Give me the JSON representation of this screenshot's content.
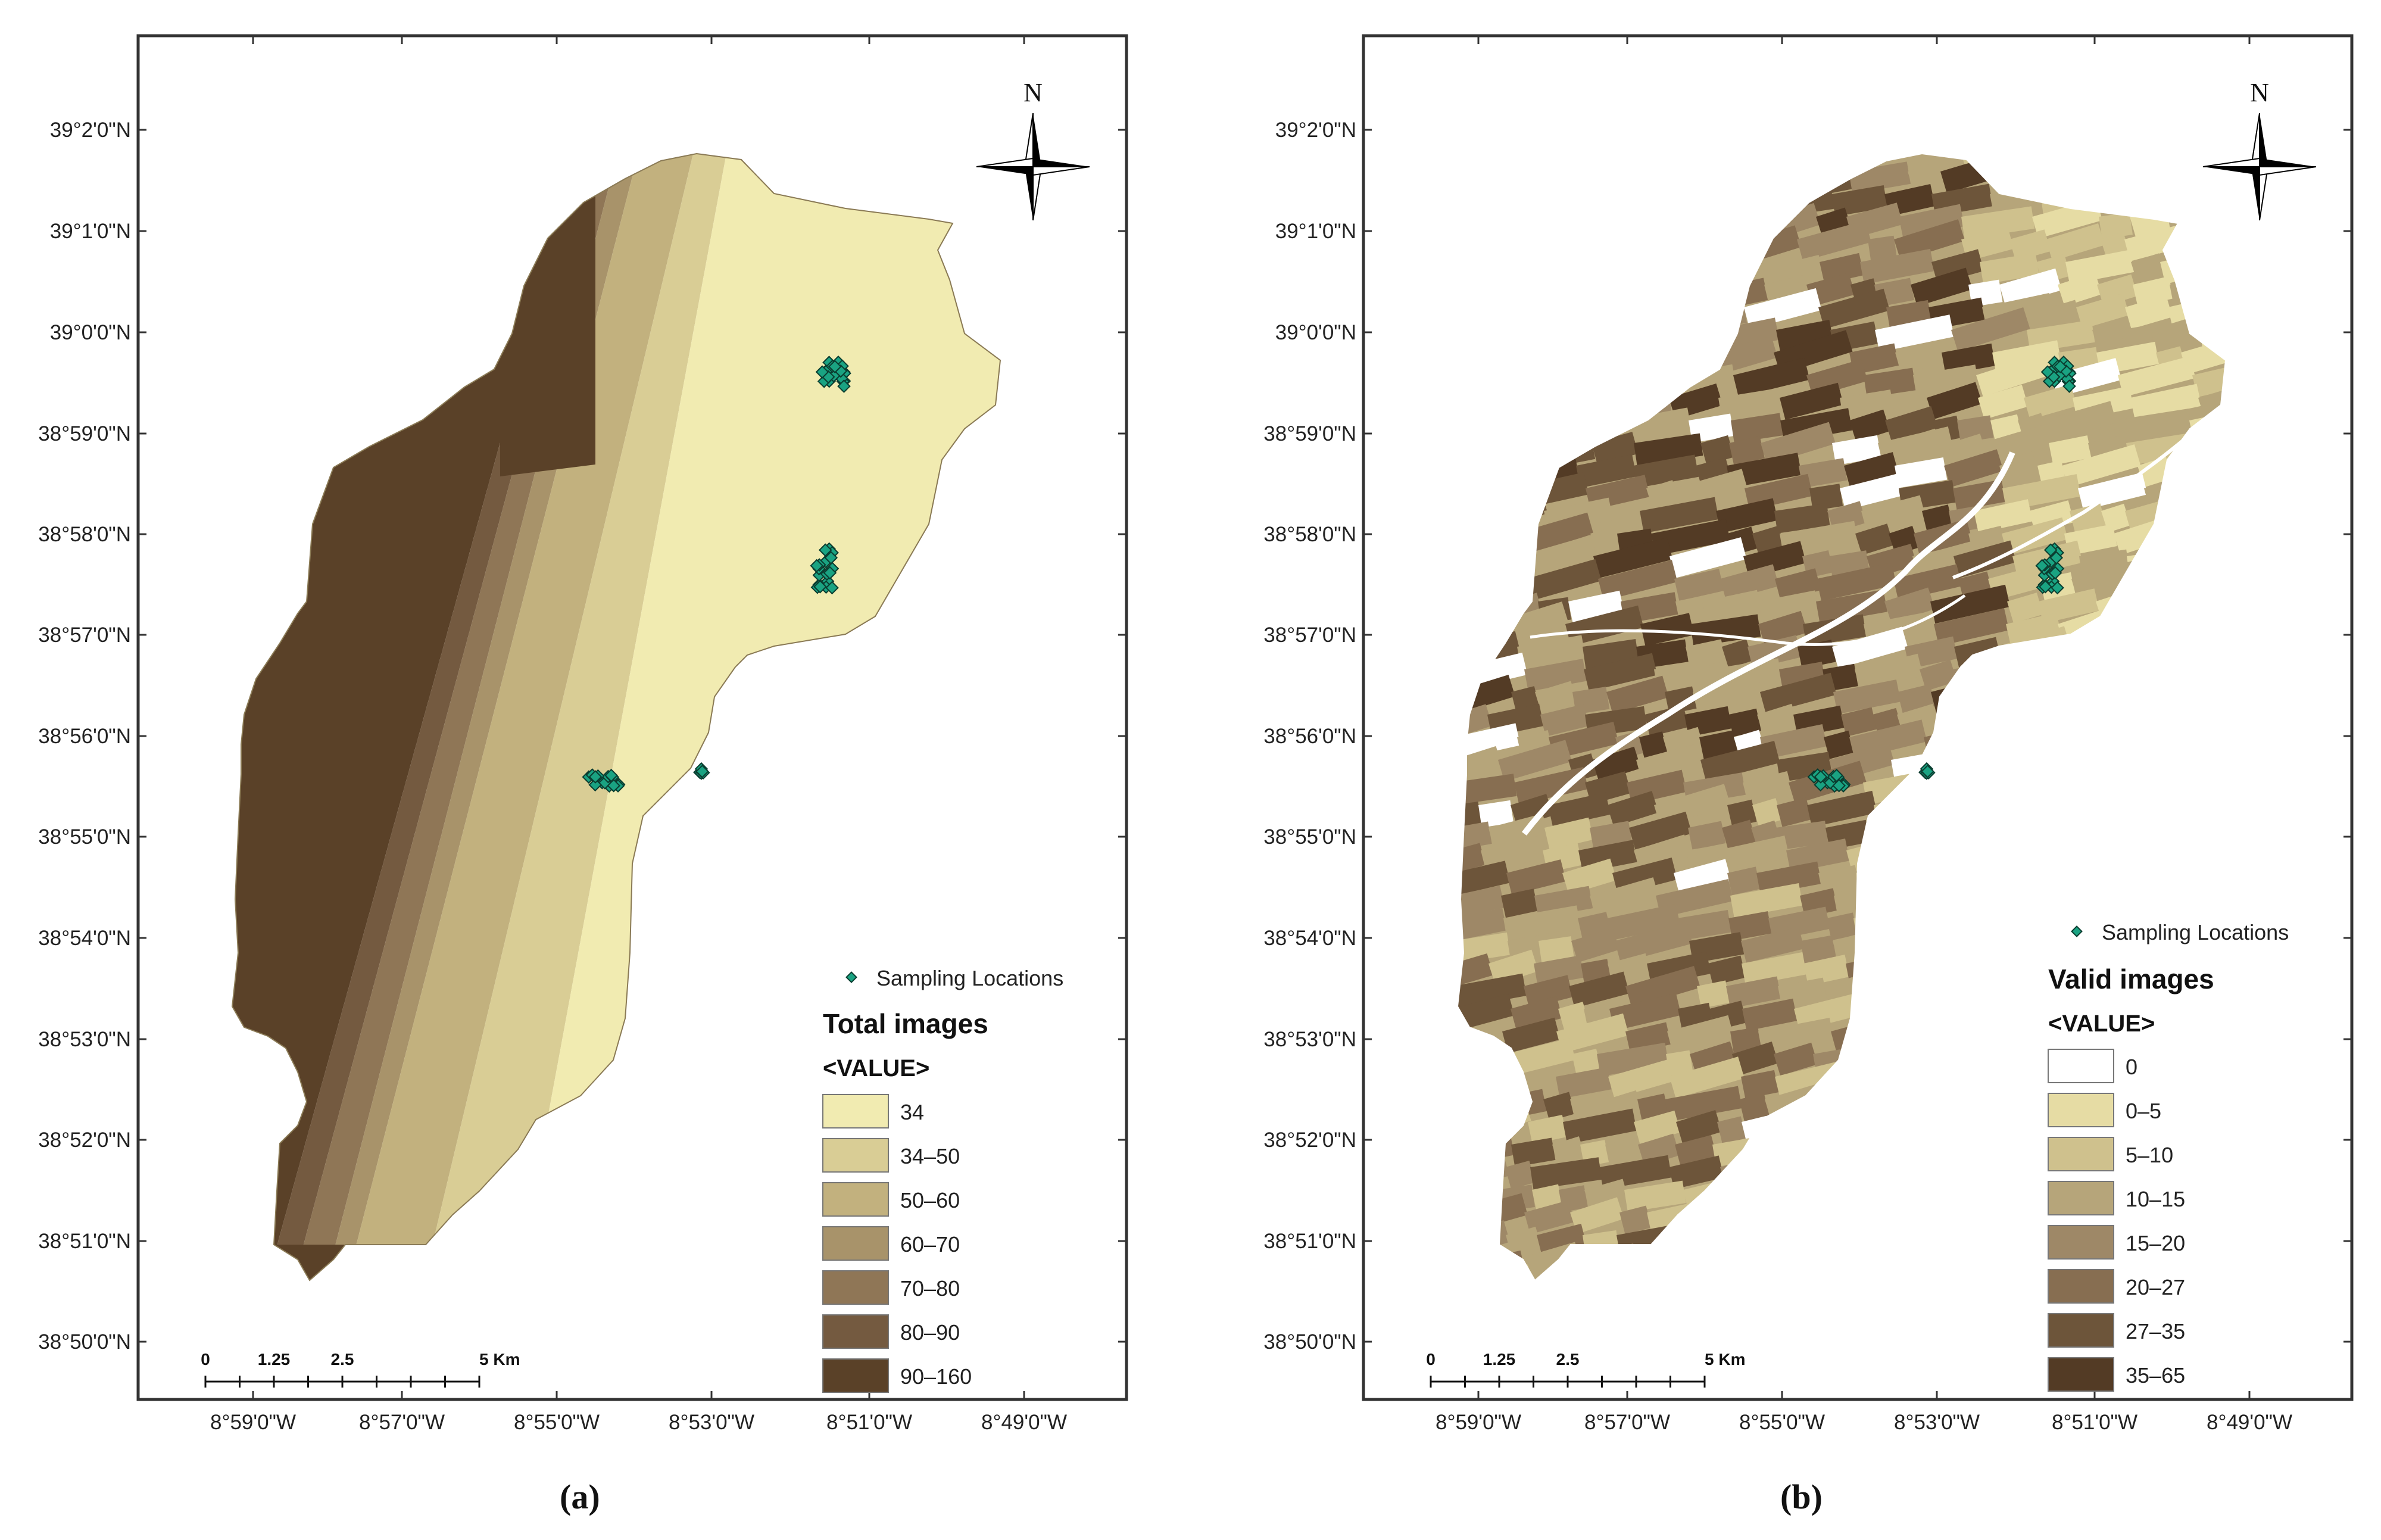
{
  "colors": {
    "frame": "#333333",
    "sampling_marker": "#1aa382",
    "total_ramp": [
      "#f1ebb1",
      "#d9cd95",
      "#c2b17e",
      "#a8936a",
      "#8f7656",
      "#745a40",
      "#5a4128"
    ],
    "valid_ramp": [
      "#ffffff",
      "#e6dca4",
      "#cfc18d",
      "#b6a57a",
      "#9e8867",
      "#876e51",
      "#6d553a",
      "#533b25"
    ]
  },
  "axes": {
    "lat_labels": [
      "39°2'0\"N",
      "39°1'0\"N",
      "39°0'0\"N",
      "38°59'0\"N",
      "38°58'0\"N",
      "38°57'0\"N",
      "38°56'0\"N",
      "38°55'0\"N",
      "38°54'0\"N",
      "38°53'0\"N",
      "38°52'0\"N",
      "38°51'0\"N",
      "38°50'0\"N"
    ],
    "lon_labels": [
      "8°59'0\"W",
      "8°57'0\"W",
      "8°55'0\"W",
      "8°53'0\"W",
      "8°51'0\"W",
      "8°49'0\"W"
    ]
  },
  "north_arrow": {
    "label": "N"
  },
  "scale_bar": {
    "labels": [
      "0",
      "1.25",
      "2.5",
      "5 Km"
    ]
  },
  "panels": [
    {
      "id": "a",
      "caption": "(a)",
      "legend": {
        "marker_label": "Sampling Locations",
        "title": "Total images",
        "value_label": "<VALUE>",
        "classes": [
          "34",
          "34–50",
          "50–60",
          "60–70",
          "70–80",
          "80–90",
          "90–160"
        ]
      }
    },
    {
      "id": "b",
      "caption": "(b)",
      "legend": {
        "marker_label": "Sampling Locations",
        "title": "Valid images",
        "value_label": "<VALUE>",
        "classes": [
          "0",
          "0–5",
          "5–10",
          "10–15",
          "15–20",
          "20–27",
          "27–35",
          "35–65"
        ]
      }
    }
  ]
}
